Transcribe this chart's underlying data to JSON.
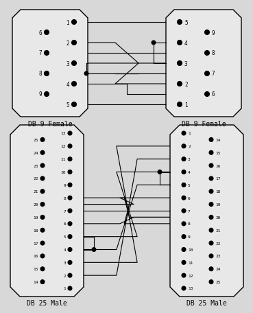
{
  "bg_color": "#d8d8d8",
  "line_color": "#000000",
  "connector_fill": "#e8e8e8",
  "dot_color": "#000000",
  "db9_left": {
    "label": "DB 9 Female",
    "outer_pins": [
      "6",
      "7",
      "8",
      "9"
    ],
    "inner_pins": [
      "1",
      "2",
      "3",
      "4",
      "5"
    ],
    "connections": {
      "1": {
        "wire_row": 0
      },
      "2": {
        "wire_row": 2
      },
      "3": {
        "wire_row": 4
      },
      "4": {
        "wire_row": 6
      },
      "5": {
        "wire_row": 8
      },
      "6": {
        "wire_row": 1
      },
      "7": {
        "wire_row": 3
      },
      "8": {
        "wire_row": 5
      },
      "9": {
        "wire_row": 7
      }
    }
  },
  "db9_right": {
    "label": "DB 9 Female",
    "outer_pins": [
      "9",
      "8",
      "7",
      "6"
    ],
    "inner_pins": [
      "5",
      "4",
      "3",
      "2",
      "1"
    ],
    "connections": {
      "5": {
        "wire_row": 0
      },
      "4": {
        "wire_row": 2
      },
      "3": {
        "wire_row": 4
      },
      "2": {
        "wire_row": 6
      },
      "1": {
        "wire_row": 8
      },
      "9": {
        "wire_row": 1
      },
      "8": {
        "wire_row": 3
      },
      "7": {
        "wire_row": 5
      },
      "6": {
        "wire_row": 7
      }
    }
  },
  "db25_left": {
    "label": "DB 25 Male",
    "outer_col": [
      "25",
      "24",
      "23",
      "22",
      "21",
      "20",
      "19",
      "18",
      "17",
      "16",
      "15",
      "14"
    ],
    "inner_col": [
      "13",
      "12",
      "11",
      "10",
      "9",
      "8",
      "7",
      "6",
      "5",
      "4",
      "3",
      "2",
      "1"
    ]
  },
  "db25_right": {
    "label": "DB 25 Male",
    "outer_col": [
      "14",
      "15",
      "16",
      "17",
      "18",
      "19",
      "20",
      "21",
      "22",
      "23",
      "24",
      "25"
    ],
    "inner_col": [
      "1",
      "2",
      "3",
      "4",
      "5",
      "6",
      "7",
      "8",
      "9",
      "10",
      "11",
      "12",
      "13"
    ]
  }
}
